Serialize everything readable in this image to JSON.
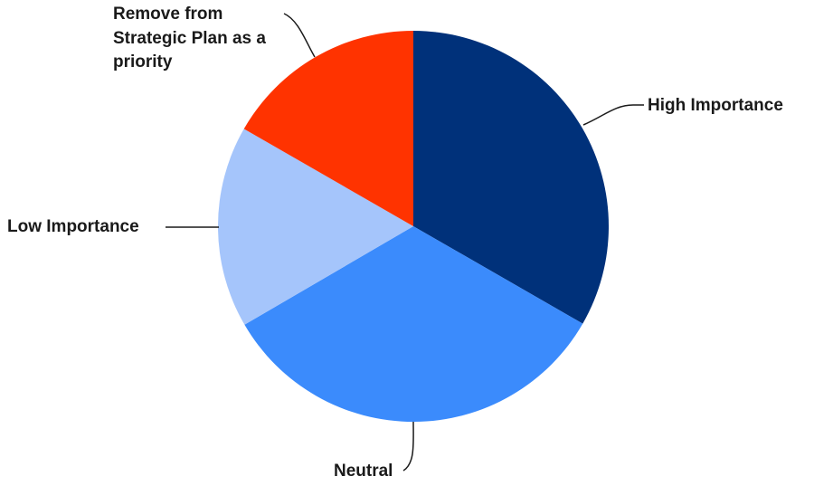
{
  "chart_data": {
    "type": "pie",
    "categories": [
      "High Importance",
      "Neutral",
      "Low Importance",
      "Remove from Strategic Plan as a priority"
    ],
    "values": [
      33.3,
      33.3,
      16.7,
      16.7
    ],
    "start_angle": "12 o'clock",
    "direction": "clockwise",
    "legend": "none (callout labels with leader lines)",
    "colors": {
      "High Importance": "#00317A",
      "Neutral": "#3B8BFC",
      "Low Importance": "#A5C5FB",
      "Remove from Strategic Plan as a priority": "#FF3300"
    },
    "label_text": {
      "high": "High Importance",
      "neutral": "Neutral",
      "low": "Low Importance",
      "remove": "Remove from\nStrategic Plan as a\npriority"
    }
  }
}
